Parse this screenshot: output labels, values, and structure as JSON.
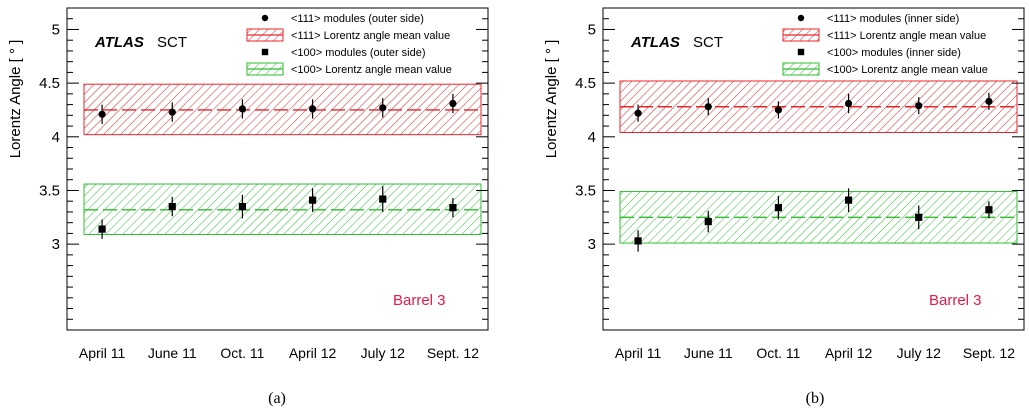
{
  "colors": {
    "red": "#e8262a",
    "green": "#2fbf2f",
    "barrel": "#e5194c",
    "axis": "#000000"
  },
  "chart_data": [
    {
      "type": "scatter",
      "panel_label": "(a)",
      "experiment": "ATLAS",
      "detector": "SCT",
      "annotation": "Barrel 3",
      "ylabel": "Lorentz Angle [ ° ]",
      "ylim": [
        2.2,
        5.2
      ],
      "yticks": [
        3,
        3.5,
        4,
        4.5,
        5
      ],
      "categories": [
        "April 11",
        "June 11",
        "Oct. 11",
        "April 12",
        "July 12",
        "Sept. 12"
      ],
      "series": [
        {
          "name": "<111> modules (outer side)",
          "marker": "circle",
          "values": [
            4.21,
            4.23,
            4.26,
            4.26,
            4.27,
            4.31
          ],
          "errors": [
            0.09,
            0.09,
            0.09,
            0.09,
            0.09,
            0.09
          ]
        },
        {
          "name": "<100> modules (outer side)",
          "marker": "square",
          "values": [
            3.14,
            3.35,
            3.35,
            3.41,
            3.42,
            3.34
          ],
          "errors": [
            0.09,
            0.09,
            0.11,
            0.11,
            0.12,
            0.09
          ]
        }
      ],
      "bands": [
        {
          "name": "<111> Lorentz angle mean value",
          "color": "red",
          "mean": 4.25,
          "low": 4.02,
          "high": 4.49
        },
        {
          "name": "<100> Lorentz angle mean value",
          "color": "green",
          "mean": 3.32,
          "low": 3.09,
          "high": 3.56
        }
      ]
    },
    {
      "type": "scatter",
      "panel_label": "(b)",
      "experiment": "ATLAS",
      "detector": "SCT",
      "annotation": "Barrel 3",
      "ylabel": "Lorentz Angle [ ° ]",
      "ylim": [
        2.2,
        5.2
      ],
      "yticks": [
        3,
        3.5,
        4,
        4.5,
        5
      ],
      "categories": [
        "April 11",
        "June 11",
        "Oct. 11",
        "April 12",
        "July 12",
        "Sept. 12"
      ],
      "series": [
        {
          "name": "<111> modules (inner side)",
          "marker": "circle",
          "values": [
            4.22,
            4.28,
            4.25,
            4.31,
            4.29,
            4.33
          ],
          "errors": [
            0.08,
            0.08,
            0.08,
            0.09,
            0.08,
            0.08
          ]
        },
        {
          "name": "<100> modules (inner side)",
          "marker": "square",
          "values": [
            3.03,
            3.21,
            3.34,
            3.41,
            3.25,
            3.32
          ],
          "errors": [
            0.1,
            0.1,
            0.11,
            0.11,
            0.11,
            0.08
          ]
        }
      ],
      "bands": [
        {
          "name": "<111> Lorentz angle mean value",
          "color": "red",
          "mean": 4.28,
          "low": 4.04,
          "high": 4.52
        },
        {
          "name": "<100> Lorentz angle mean value",
          "color": "green",
          "mean": 3.25,
          "low": 3.01,
          "high": 3.49
        }
      ]
    }
  ]
}
